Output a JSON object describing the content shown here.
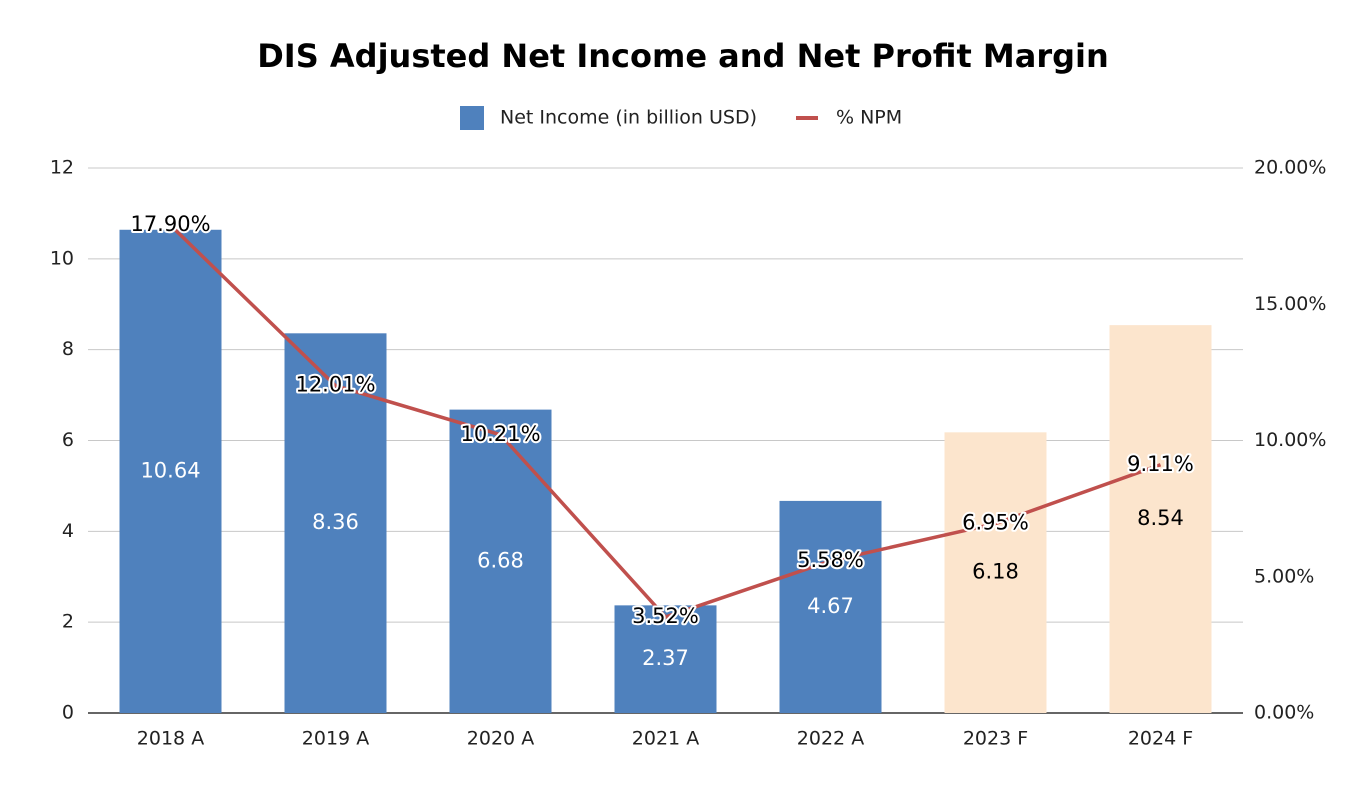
{
  "chart_data": {
    "type": "bar",
    "title": "DIS Adjusted Net Income and Net Profit Margin",
    "categories": [
      "2018 A",
      "2019 A",
      "2020 A",
      "2021 A",
      "2022 A",
      "2023 F",
      "2024 F"
    ],
    "series": [
      {
        "name": "Net Income (in billion USD)",
        "type": "bar",
        "color": "#4f81bd",
        "point_colors": [
          "#4f81bd",
          "#4f81bd",
          "#4f81bd",
          "#4f81bd",
          "#4f81bd",
          "#fce5cd",
          "#fce5cd"
        ],
        "values": [
          10.64,
          8.36,
          6.68,
          2.37,
          4.67,
          6.18,
          8.54
        ]
      },
      {
        "name": "% NPM",
        "type": "line",
        "axis": "y2",
        "color": "#c0504d",
        "values": [
          17.9,
          12.01,
          10.21,
          3.52,
          5.58,
          6.95,
          9.11
        ],
        "value_labels": [
          "17.90%",
          "12.01%",
          "10.21%",
          "3.52%",
          "5.58%",
          "6.95%",
          "9.11%"
        ]
      }
    ],
    "ylim": [
      0,
      12
    ],
    "yticks": [
      0,
      2,
      4,
      6,
      8,
      10,
      12
    ],
    "y2lim": [
      0,
      20
    ],
    "y2ticks": [
      {
        "value": 0,
        "label": "0.00%"
      },
      {
        "value": 5,
        "label": "5.00%"
      },
      {
        "value": 10,
        "label": "10.00%"
      },
      {
        "value": 15,
        "label": "15.00%"
      },
      {
        "value": 20,
        "label": "20.00%"
      }
    ],
    "grid": true,
    "legend": "top"
  }
}
